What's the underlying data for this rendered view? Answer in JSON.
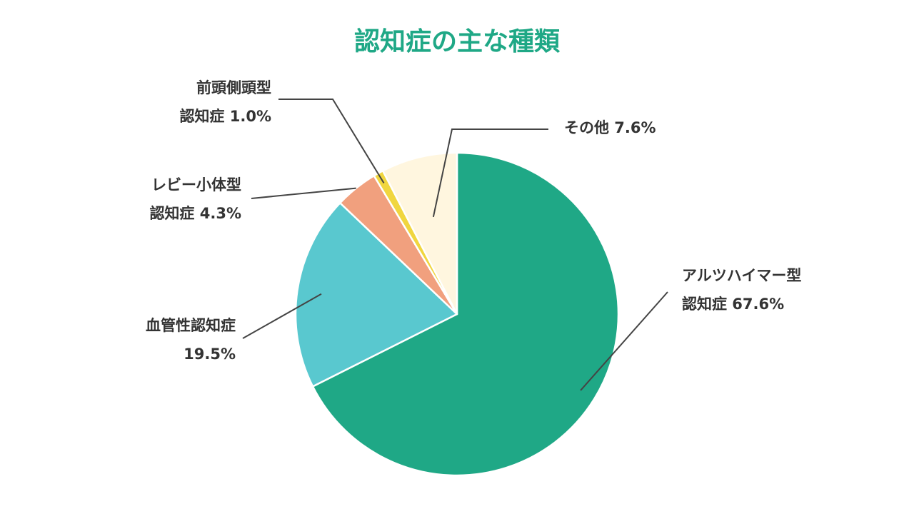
{
  "chart_data": {
    "type": "pie",
    "title": "認知症の主な種類",
    "start_angle_deg": 0,
    "direction": "clockwise",
    "slices": [
      {
        "label_lines": [
          "アルツハイマー型",
          "認知症 67.6%"
        ],
        "value": 67.6,
        "color": "#1fa886"
      },
      {
        "label_lines": [
          "血管性認知症",
          "19.5%"
        ],
        "value": 19.5,
        "color": "#59c8cf"
      },
      {
        "label_lines": [
          "レビー小体型",
          "認知症 4.3%"
        ],
        "value": 4.3,
        "color": "#f1a07e"
      },
      {
        "label_lines": [
          "前頭側頭型",
          "認知症 1.0%"
        ],
        "value": 1.0,
        "color": "#f0d63f"
      },
      {
        "label_lines": [
          "その他 7.6%"
        ],
        "value": 7.6,
        "color": "#fff6df"
      }
    ]
  },
  "colors": {
    "title": "#1fa886",
    "slice_border": "#ffffff"
  }
}
